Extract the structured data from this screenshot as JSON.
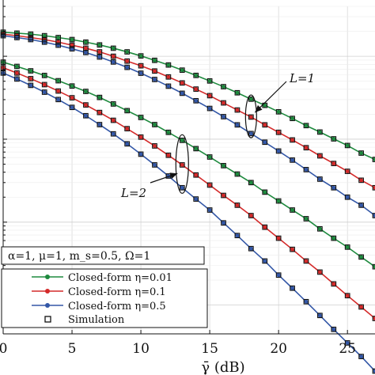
{
  "chart_data": {
    "type": "line",
    "xlabel": "γ̄ (dB)",
    "x_ticks": [
      0,
      5,
      10,
      15,
      20,
      25
    ],
    "xlim": [
      0,
      27
    ],
    "y_scale": "log",
    "grid": true,
    "x": [
      0,
      1,
      2,
      3,
      4,
      5,
      6,
      7,
      8,
      9,
      10,
      11,
      12,
      13,
      14,
      15,
      16,
      17,
      18,
      19,
      20,
      21,
      22,
      23,
      24,
      25,
      26,
      27
    ],
    "params_text": "α=1, μ=1, m_s=0.5, Ω=1",
    "legend_position": "bottom-left",
    "series": [
      {
        "name": "Closed-form η=0.01",
        "color": "#1e8a3e",
        "L": 1,
        "values": [
          0.195,
          0.19,
          0.185,
          0.177,
          0.168,
          0.159,
          0.148,
          0.137,
          0.125,
          0.113,
          0.101,
          0.0893,
          0.0785,
          0.068,
          0.0588,
          0.0504,
          0.043,
          0.0363,
          0.0304,
          0.0256,
          0.0214,
          0.0178,
          0.0146,
          0.0122,
          0.0101,
          0.0084,
          0.0068,
          0.0057
        ]
      },
      {
        "name": "Closed-form η=0.1",
        "color": "#d42a2a",
        "L": 1,
        "values": [
          0.185,
          0.177,
          0.168,
          0.159,
          0.148,
          0.136,
          0.125,
          0.113,
          0.1,
          0.0875,
          0.0768,
          0.0664,
          0.0563,
          0.0477,
          0.0402,
          0.0335,
          0.0274,
          0.0225,
          0.0185,
          0.0149,
          0.0121,
          0.0098,
          0.0079,
          0.0063,
          0.0051,
          0.0041,
          0.0032,
          0.0026
        ]
      },
      {
        "name": "Closed-form η=0.5",
        "color": "#3357a7",
        "L": 1,
        "values": [
          0.177,
          0.168,
          0.159,
          0.148,
          0.136,
          0.123,
          0.111,
          0.098,
          0.0853,
          0.0735,
          0.0625,
          0.0525,
          0.0436,
          0.0358,
          0.0291,
          0.0235,
          0.0187,
          0.0149,
          0.0117,
          0.0092,
          0.0072,
          0.0056,
          0.0043,
          0.0033,
          0.0026,
          0.002,
          0.0016,
          0.0012
        ]
      },
      {
        "name": "Closed-form η=0.01",
        "color": "#1e8a3e",
        "L": 2,
        "values": [
          0.0849,
          0.0754,
          0.0667,
          0.0587,
          0.0507,
          0.0438,
          0.0377,
          0.0319,
          0.0266,
          0.0221,
          0.0183,
          0.015,
          0.0121,
          0.0097,
          0.0077,
          0.0061,
          0.0048,
          0.0038,
          0.003,
          0.0023,
          0.0018,
          0.0014,
          0.0011,
          0.00083,
          0.00064,
          0.0005,
          0.00038,
          0.00029
        ]
      },
      {
        "name": "Closed-form η=0.1",
        "color": "#d42a2a",
        "L": 2,
        "values": [
          0.0727,
          0.0628,
          0.0537,
          0.0455,
          0.0381,
          0.0316,
          0.0259,
          0.021,
          0.0169,
          0.0134,
          0.0106,
          0.0083,
          0.0064,
          0.0049,
          0.0037,
          0.0028,
          0.0021,
          0.0016,
          0.0012,
          0.00087,
          0.00064,
          0.00047,
          0.00034,
          0.00025,
          0.00018,
          0.00013,
          9.5e-05,
          6.9e-05
        ]
      },
      {
        "name": "Closed-form η=0.5",
        "color": "#3357a7",
        "L": 2,
        "values": [
          0.0628,
          0.0532,
          0.0446,
          0.0369,
          0.0301,
          0.0242,
          0.0192,
          0.015,
          0.0116,
          0.0088,
          0.0066,
          0.0049,
          0.0036,
          0.0026,
          0.0019,
          0.0014,
          0.00098,
          0.00069,
          0.00048,
          0.00034,
          0.00023,
          0.00016,
          0.00011,
          7.5e-05,
          5.1e-05,
          3.5e-05,
          2.4e-05,
          1.6e-05
        ]
      }
    ],
    "simulation": {
      "name": "Simulation",
      "x_step": 1
    },
    "annotations": [
      {
        "text": "L=1",
        "series_group": 1
      },
      {
        "text": "L=2",
        "series_group": 2
      }
    ]
  }
}
